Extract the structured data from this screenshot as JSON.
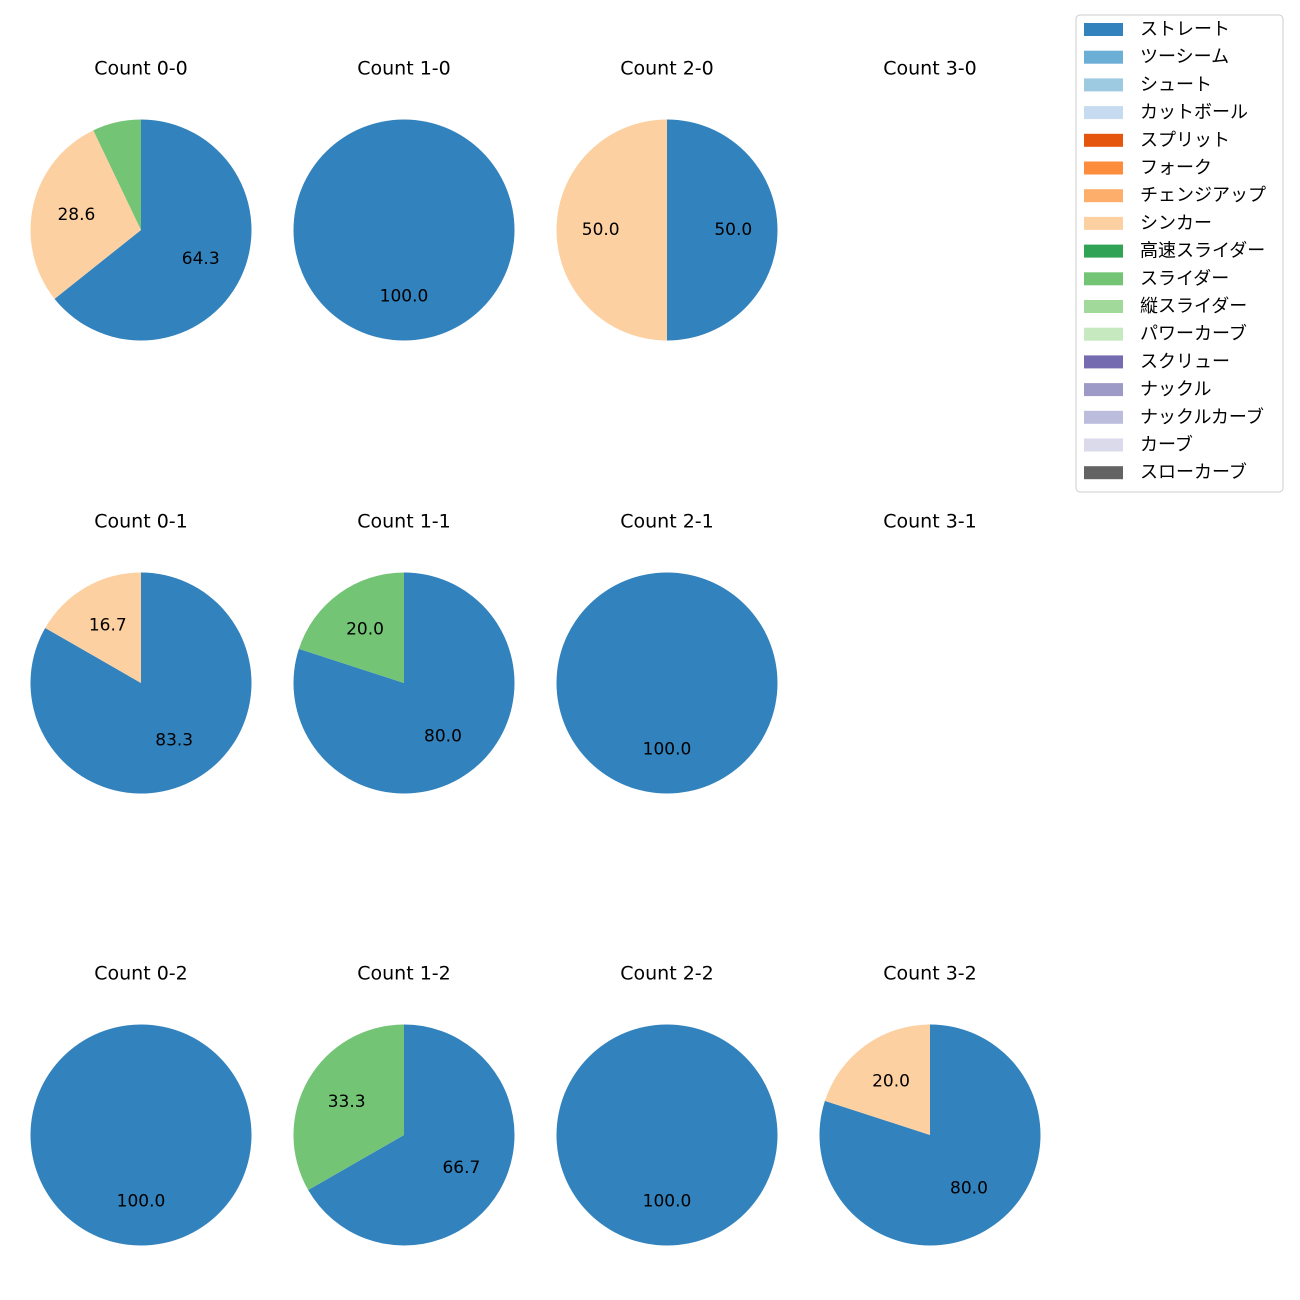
{
  "chart_data": {
    "type": "pie",
    "legend_position": "top-right",
    "legend": [
      {
        "name": "ストレート",
        "color": "#3182bd"
      },
      {
        "name": "ツーシーム",
        "color": "#6baed6"
      },
      {
        "name": "シュート",
        "color": "#9ecae1"
      },
      {
        "name": "カットボール",
        "color": "#c6dbef"
      },
      {
        "name": "スプリット",
        "color": "#e6550d"
      },
      {
        "name": "フォーク",
        "color": "#fd8d3c"
      },
      {
        "name": "チェンジアップ",
        "color": "#fdae6b"
      },
      {
        "name": "シンカー",
        "color": "#fdd0a2"
      },
      {
        "name": "高速スライダー",
        "color": "#31a354"
      },
      {
        "name": "スライダー",
        "color": "#74c476"
      },
      {
        "name": "縦スライダー",
        "color": "#a1d99b"
      },
      {
        "name": "パワーカーブ",
        "color": "#c7e9c0"
      },
      {
        "name": "スクリュー",
        "color": "#756bb1"
      },
      {
        "name": "ナックル",
        "color": "#9e9ac8"
      },
      {
        "name": "ナックルカーブ",
        "color": "#bcbddc"
      },
      {
        "name": "カーブ",
        "color": "#dadaeb"
      },
      {
        "name": "スローカーブ",
        "color": "#636363"
      }
    ],
    "charts": [
      {
        "title": "Count 0-0",
        "slices": [
          {
            "label": "ストレート",
            "value": 64.3
          },
          {
            "label": "シンカー",
            "value": 28.6
          },
          {
            "label": "スライダー",
            "value": 7.1,
            "show_label": false
          }
        ]
      },
      {
        "title": "Count 1-0",
        "slices": [
          {
            "label": "ストレート",
            "value": 100.0
          }
        ]
      },
      {
        "title": "Count 2-0",
        "slices": [
          {
            "label": "ストレート",
            "value": 50.0
          },
          {
            "label": "シンカー",
            "value": 50.0
          }
        ]
      },
      {
        "title": "Count 3-0",
        "slices": []
      },
      {
        "title": "Count 0-1",
        "slices": [
          {
            "label": "ストレート",
            "value": 83.3
          },
          {
            "label": "シンカー",
            "value": 16.7
          }
        ]
      },
      {
        "title": "Count 1-1",
        "slices": [
          {
            "label": "ストレート",
            "value": 80.0
          },
          {
            "label": "スライダー",
            "value": 20.0
          }
        ]
      },
      {
        "title": "Count 2-1",
        "slices": [
          {
            "label": "ストレート",
            "value": 100.0
          }
        ]
      },
      {
        "title": "Count 3-1",
        "slices": []
      },
      {
        "title": "Count 0-2",
        "slices": [
          {
            "label": "ストレート",
            "value": 100.0
          }
        ]
      },
      {
        "title": "Count 1-2",
        "slices": [
          {
            "label": "ストレート",
            "value": 66.7
          },
          {
            "label": "スライダー",
            "value": 33.3
          }
        ]
      },
      {
        "title": "Count 2-2",
        "slices": [
          {
            "label": "ストレート",
            "value": 100.0
          }
        ]
      },
      {
        "title": "Count 3-2",
        "slices": [
          {
            "label": "ストレート",
            "value": 80.0
          },
          {
            "label": "シンカー",
            "value": 20.0
          }
        ]
      }
    ]
  }
}
